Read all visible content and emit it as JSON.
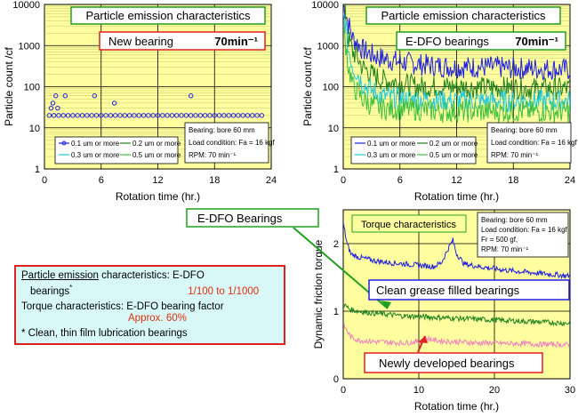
{
  "chart_data": [
    {
      "type": "scatter",
      "yscale": "log",
      "ylabel": "Particle count /cf",
      "xlabel": "Rotation time (hr.)",
      "xlim": [
        0,
        24
      ],
      "ylim": [
        1,
        10000
      ],
      "xticks": [
        "0",
        "6",
        "12",
        "18",
        "24"
      ],
      "yticks": [
        "1",
        "10",
        "100",
        "1000",
        "10000"
      ],
      "title": "Particle emission characteristics",
      "subtitle": "New bearing 70min⁻¹",
      "title_main": "Particle emission characteristics",
      "subtitle_main": "New bearing",
      "subtitle_rpm": "70min⁻¹",
      "conditions": [
        "Bearing: bore 60 mm",
        "Load condition: Fa = 16 kgf",
        "RPM: 70 min⁻¹"
      ],
      "series": [
        {
          "name": "0.1 um or more",
          "color": "#2020e0",
          "x": [
            0.5,
            1,
            1.5,
            2,
            2.5,
            3,
            3.5,
            4,
            4.5,
            5,
            5.5,
            6,
            6.5,
            7,
            7.5,
            8,
            8.5,
            9,
            9.5,
            10,
            10.5,
            11,
            11.5,
            12,
            12.5,
            13,
            13.5,
            14,
            14.5,
            15,
            15.5,
            16,
            16.5,
            17,
            17.5,
            18,
            18.5,
            19,
            19.5,
            20,
            20.5,
            21,
            21.5,
            22,
            22.5,
            23,
            0.9,
            1.2,
            2.2,
            5.3,
            7.4,
            15.5,
            0.7,
            1.4
          ],
          "y": [
            20,
            20,
            20,
            20,
            20,
            20,
            20,
            20,
            20,
            20,
            20,
            20,
            20,
            20,
            20,
            20,
            20,
            20,
            20,
            20,
            20,
            20,
            20,
            20,
            20,
            20,
            20,
            20,
            20,
            20,
            20,
            20,
            20,
            20,
            20,
            20,
            20,
            20,
            20,
            20,
            20,
            20,
            20,
            20,
            20,
            20,
            40,
            60,
            60,
            60,
            40,
            60,
            30,
            30
          ]
        },
        {
          "name": "0.2 um or more",
          "color": "#208020",
          "x": [],
          "y": []
        },
        {
          "name": "0.3 um or more",
          "color": "#20c8e0",
          "x": [],
          "y": []
        },
        {
          "name": "0.5 um or more",
          "color": "#40c040",
          "x": [],
          "y": []
        }
      ]
    },
    {
      "type": "line",
      "yscale": "log",
      "ylabel": "Particle count /cf",
      "xlabel": "Rotation time (hr.)",
      "xlim": [
        0,
        24
      ],
      "ylim": [
        1,
        10000
      ],
      "xticks": [
        "0",
        "6",
        "12",
        "18",
        "24"
      ],
      "yticks": [
        "1",
        "10",
        "100",
        "1000",
        "10000"
      ],
      "title": "Particle emission characteristics",
      "subtitle": "E-DFO bearings 70min⁻¹",
      "title_main": "Particle emission characteristics",
      "subtitle_main": "E-DFO bearings",
      "subtitle_rpm": "70min⁻¹",
      "conditions": [
        "Bearing: bore 60 mm",
        "Load condition: Fa = 16 kgf",
        "RPM: 70 min⁻¹"
      ],
      "series": [
        {
          "name": "0.1 um or more",
          "color": "#2020e0",
          "x": [
            0,
            0.5,
            1,
            2,
            3,
            4,
            6,
            8,
            10,
            12,
            14,
            16,
            18,
            20,
            22,
            24
          ],
          "y": [
            10000,
            3500,
            1500,
            800,
            600,
            500,
            400,
            350,
            320,
            300,
            300,
            300,
            280,
            280,
            270,
            260
          ]
        },
        {
          "name": "0.2 um or more",
          "color": "#208020",
          "x": [
            0,
            0.5,
            1,
            2,
            3,
            4,
            6,
            8,
            10,
            12,
            14,
            16,
            18,
            20,
            22,
            24
          ],
          "y": [
            10000,
            1500,
            700,
            300,
            200,
            150,
            120,
            100,
            100,
            100,
            95,
            95,
            95,
            90,
            90,
            90
          ]
        },
        {
          "name": "0.3 um or more",
          "color": "#20c8e0",
          "x": [
            0,
            0.5,
            1,
            2,
            3,
            4,
            6,
            8,
            10,
            12,
            14,
            16,
            18,
            20,
            22,
            24
          ],
          "y": [
            5000,
            800,
            300,
            120,
            80,
            60,
            50,
            50,
            48,
            45,
            45,
            45,
            45,
            45,
            45,
            45
          ]
        },
        {
          "name": "0.5 um or more",
          "color": "#40c040",
          "x": [
            0,
            0.5,
            1,
            2,
            3,
            4,
            6,
            8,
            10,
            12,
            14,
            16,
            18,
            20,
            22,
            24
          ],
          "y": [
            2000,
            300,
            100,
            50,
            35,
            30,
            28,
            28,
            25,
            25,
            25,
            25,
            25,
            25,
            25,
            25
          ]
        }
      ]
    },
    {
      "type": "line",
      "ylabel": "Dynamic friction torque",
      "xlabel": "Rotation time (hr.)",
      "xlim": [
        0,
        30
      ],
      "ylim": [
        0,
        2.5
      ],
      "xticks": [
        "0",
        "10",
        "20",
        "30"
      ],
      "yticks": [
        "0",
        "1",
        "2"
      ],
      "title": "Torque characteristics",
      "conditions": [
        "Bearing: bore 60 mm",
        "Load condition: Fa = 16 kgf",
        "Fr = 500 gf,",
        "RPM: 70 min⁻¹"
      ],
      "series": [
        {
          "name": "Clean grease filled bearings",
          "color": "#2020e0",
          "x": [
            0,
            0.5,
            1,
            2,
            4,
            6,
            8,
            10,
            12,
            13,
            14,
            14.5,
            15,
            16,
            18,
            20,
            22,
            24,
            26,
            28,
            30
          ],
          "y": [
            2.3,
            2.0,
            1.85,
            1.8,
            1.75,
            1.72,
            1.7,
            1.68,
            1.66,
            1.72,
            1.95,
            2.05,
            1.85,
            1.7,
            1.66,
            1.63,
            1.6,
            1.58,
            1.56,
            1.54,
            1.52
          ]
        },
        {
          "name": "E-DFO Bearings",
          "color": "#208020",
          "x": [
            0,
            1,
            2,
            4,
            6,
            8,
            10,
            12,
            14,
            16,
            18,
            20,
            22,
            24,
            26,
            28,
            30
          ],
          "y": [
            1.1,
            1.02,
            1.0,
            0.97,
            0.95,
            0.93,
            0.92,
            0.91,
            0.9,
            0.89,
            0.88,
            0.87,
            0.86,
            0.85,
            0.84,
            0.83,
            0.82
          ]
        },
        {
          "name": "Newly developed bearings",
          "color": "#f080c0",
          "x": [
            0,
            1,
            2,
            4,
            6,
            8,
            10,
            11,
            12,
            14,
            16,
            18,
            20,
            22,
            24,
            26,
            28,
            30
          ],
          "y": [
            0.8,
            0.62,
            0.57,
            0.55,
            0.54,
            0.53,
            0.55,
            0.6,
            0.57,
            0.55,
            0.54,
            0.53,
            0.53,
            0.52,
            0.52,
            0.51,
            0.51,
            0.5
          ]
        }
      ]
    }
  ],
  "summary": {
    "line1_u": "Particle emission",
    "line1_rest": " characteristics: E-DFO",
    "line2": "bearings",
    "line2_star": "*",
    "line2_red": "1/100 to 1/1000",
    "line3": "Torque characteristics: E-DFO bearing factor",
    "line4_red": "Approx. 60%",
    "line5": "* Clean, thin film lubrication bearings"
  },
  "colors": {
    "plot_bg": "#ffffa0",
    "title_border": "#20a020",
    "title_text": "#107010",
    "red_label": "#e02020",
    "blue_label": "#2020e0",
    "summary_bg": "#d8f8f8"
  }
}
